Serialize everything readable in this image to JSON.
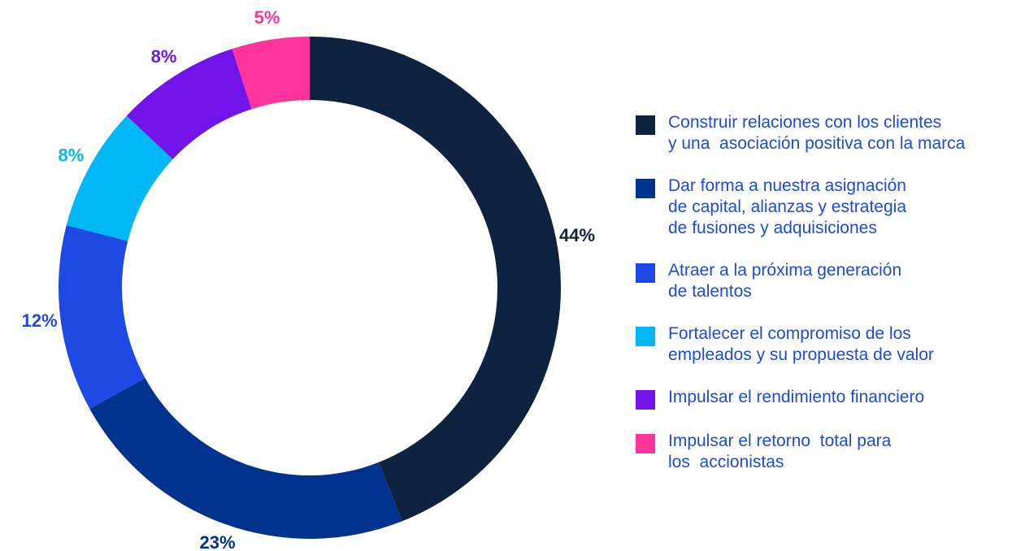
{
  "chart_data": {
    "type": "donut",
    "categories": [
      "Construir relaciones con los clientes\ny una  asociación positiva con la marca",
      "Dar forma a nuestra asignación\nde capital, alianzas y estrategia\nde fusiones y adquisiciones",
      "Atraer a la próxima generación\nde talentos",
      "Fortalecer el compromiso de los\nempleados y su propuesta de valor",
      "Impulsar el rendimiento financiero",
      "Impulsar el retorno  total para\nlos  accionistas"
    ],
    "values": [
      44,
      23,
      12,
      8,
      8,
      5
    ],
    "value_labels": [
      "44%",
      "23%",
      "12%",
      "8%",
      "8%",
      "5%"
    ],
    "colors": [
      "#0e2340",
      "#00338d",
      "#1e49e2",
      "#00b8f5",
      "#7213ea",
      "#fd349c"
    ]
  }
}
